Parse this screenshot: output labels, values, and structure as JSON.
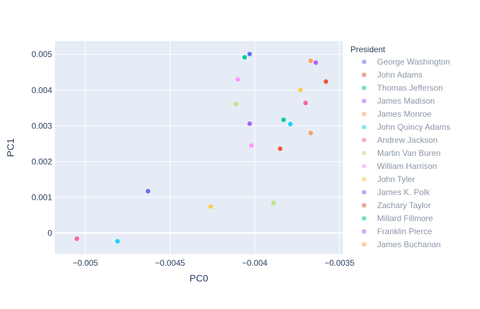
{
  "chart_data": {
    "type": "scatter",
    "xlabel": "PC0",
    "ylabel": "PC1",
    "xlim": [
      -0.00518,
      -0.00348
    ],
    "ylim": [
      -0.00059,
      0.00537
    ],
    "x_ticks": [
      -0.005,
      -0.0045,
      -0.004,
      -0.0035
    ],
    "x_tick_labels": [
      "−0.005",
      "−0.0045",
      "−0.004",
      "−0.0035"
    ],
    "y_ticks": [
      0,
      0.001,
      0.002,
      0.003,
      0.004,
      0.005
    ],
    "y_tick_labels": [
      "0",
      "0.001",
      "0.002",
      "0.003",
      "0.004",
      "0.005"
    ],
    "grid": true,
    "legend_title": "President",
    "legend_position": "right",
    "series": [
      {
        "name": "George Washington",
        "color": "#636efa",
        "x": [
          -0.00403
        ],
        "y": [
          0.00501
        ]
      },
      {
        "name": "John Adams",
        "color": "#EF553B",
        "x": [
          -0.00358
        ],
        "y": [
          0.00424
        ]
      },
      {
        "name": "Thomas Jefferson",
        "color": "#00cc96",
        "x": [
          -0.00406
        ],
        "y": [
          0.00492
        ]
      },
      {
        "name": "James Madison",
        "color": "#ab63fa",
        "x": [
          -0.00403
        ],
        "y": [
          0.00306
        ]
      },
      {
        "name": "James Monroe",
        "color": "#FFA15A",
        "x": [
          -0.00367
        ],
        "y": [
          0.00482
        ]
      },
      {
        "name": "John Quincy Adams",
        "color": "#19d3f3",
        "x": [
          -0.00481
        ],
        "y": [
          -0.00023
        ]
      },
      {
        "name": "Andrew Jackson",
        "color": "#FF6692",
        "x": [
          -0.00505
        ],
        "y": [
          -0.00016
        ]
      },
      {
        "name": "Martin Van Buren",
        "color": "#B6E880",
        "x": [
          -0.00389
        ],
        "y": [
          0.00084
        ]
      },
      {
        "name": "William Harrison",
        "color": "#FF97FF",
        "x": [
          -0.00402
        ],
        "y": [
          0.00245
        ]
      },
      {
        "name": "John Tyler",
        "color": "#FECB52",
        "x": [
          -0.00373
        ],
        "y": [
          0.00401
        ]
      },
      {
        "name": "James K. Polk",
        "color": "#636efa",
        "x": [
          -0.00463
        ],
        "y": [
          0.00117
        ]
      },
      {
        "name": "Zachary Taylor",
        "color": "#EF553B",
        "x": [
          -0.00385
        ],
        "y": [
          0.00236
        ]
      },
      {
        "name": "Millard Fillmore",
        "color": "#00cc96",
        "x": [
          -0.00383
        ],
        "y": [
          0.00317
        ]
      },
      {
        "name": "Franklin Pierce",
        "color": "#ab63fa",
        "x": [
          -0.00364
        ],
        "y": [
          0.00477
        ]
      },
      {
        "name": "James Buchanan",
        "color": "#FFA15A",
        "x": [
          -0.00367
        ],
        "y": [
          0.0028
        ]
      }
    ],
    "extra_points_not_in_visible_legend": [
      {
        "color": "#19d3f3",
        "x": [
          -0.00379
        ],
        "y": [
          0.00305
        ]
      },
      {
        "color": "#FF6692",
        "x": [
          -0.0037
        ],
        "y": [
          0.00364
        ]
      },
      {
        "color": "#B6E880",
        "x": [
          -0.00411
        ],
        "y": [
          0.00361
        ]
      },
      {
        "color": "#FF97FF",
        "x": [
          -0.0041
        ],
        "y": [
          0.0043
        ]
      },
      {
        "color": "#FECB52",
        "x": [
          -0.00426
        ],
        "y": [
          0.00074
        ]
      }
    ]
  }
}
